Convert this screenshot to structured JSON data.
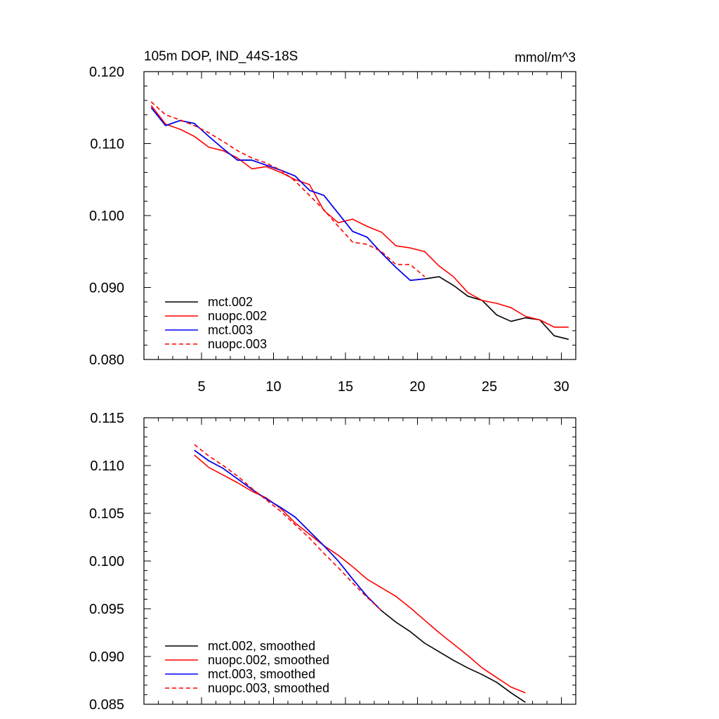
{
  "chart_data": [
    {
      "type": "line",
      "title": "105m DOP, IND_44S-18S",
      "units": "mmol/m^3",
      "xlabel": "",
      "ylabel": "",
      "xlim": [
        1,
        31
      ],
      "ylim": [
        0.08,
        0.12
      ],
      "x_tick_labels": [
        "5",
        "10",
        "15",
        "20",
        "25",
        "30"
      ],
      "y_tick_labels": [
        "0.080",
        "0.090",
        "0.100",
        "0.110",
        "0.120"
      ],
      "legend_position": "bottom-left",
      "grid": false,
      "series": [
        {
          "name": "mct.002",
          "color": "#000000",
          "dash": "solid",
          "x": [
            1.5,
            2.5,
            3.5,
            4.5,
            5.5,
            6.5,
            7.5,
            8.5,
            9.5,
            10.5,
            11.5,
            12.5,
            13.5,
            14.5,
            15.5,
            16.5,
            17.5,
            18.5,
            19.5,
            20.5,
            21.5,
            22.5,
            23.5,
            24.5,
            25.5,
            26.5,
            27.5,
            28.5,
            29.5,
            30.5
          ],
          "y": [
            0.115,
            0.1125,
            0.1132,
            0.1128,
            0.111,
            0.1093,
            0.1077,
            0.1077,
            0.107,
            0.1063,
            0.1055,
            0.1035,
            0.1028,
            0.1003,
            0.0978,
            0.097,
            0.0948,
            0.0928,
            0.091,
            0.0912,
            0.0915,
            0.0903,
            0.0888,
            0.0882,
            0.0862,
            0.0853,
            0.0858,
            0.0855,
            0.0833,
            0.0828
          ]
        },
        {
          "name": "nuopc.002",
          "color": "#ff0000",
          "dash": "solid",
          "x": [
            1.5,
            2.5,
            3.5,
            4.5,
            5.5,
            6.5,
            7.5,
            8.5,
            9.5,
            10.5,
            11.5,
            12.5,
            13.5,
            14.5,
            15.5,
            16.5,
            17.5,
            18.5,
            19.5,
            20.5,
            21.5,
            22.5,
            23.5,
            24.5,
            25.5,
            26.5,
            27.5,
            28.5,
            29.5,
            30.5
          ],
          "y": [
            0.1153,
            0.1127,
            0.112,
            0.111,
            0.1095,
            0.109,
            0.108,
            0.1065,
            0.1068,
            0.106,
            0.105,
            0.1043,
            0.1007,
            0.099,
            0.0995,
            0.0985,
            0.0977,
            0.0958,
            0.0955,
            0.095,
            0.093,
            0.0915,
            0.0893,
            0.0882,
            0.0878,
            0.0872,
            0.086,
            0.0855,
            0.0845,
            0.0845
          ]
        },
        {
          "name": "mct.003",
          "color": "#0000ff",
          "dash": "solid",
          "x": [
            1.5,
            2.5,
            3.5,
            4.5,
            5.5,
            6.5,
            7.5,
            8.5,
            9.5,
            10.5,
            11.5,
            12.5,
            13.5,
            14.5,
            15.5,
            16.5,
            17.5,
            18.5,
            19.5,
            20.5
          ],
          "y": [
            0.115,
            0.1125,
            0.1132,
            0.1128,
            0.111,
            0.1093,
            0.1077,
            0.1077,
            0.107,
            0.1063,
            0.1055,
            0.1035,
            0.1028,
            0.1003,
            0.0978,
            0.097,
            0.0948,
            0.0928,
            0.091,
            0.0912
          ]
        },
        {
          "name": "nuopc.003",
          "color": "#ff0000",
          "dash": "dashed",
          "x": [
            1.5,
            2.5,
            3.5,
            4.5,
            5.5,
            6.5,
            7.5,
            8.5,
            9.5,
            10.5,
            11.5,
            12.5,
            13.5,
            14.5,
            15.5,
            16.5,
            17.5,
            18.5,
            19.5,
            20.5
          ],
          "y": [
            0.1158,
            0.114,
            0.1133,
            0.1125,
            0.1115,
            0.1103,
            0.109,
            0.108,
            0.1073,
            0.1063,
            0.1048,
            0.1028,
            0.1008,
            0.0985,
            0.0963,
            0.096,
            0.095,
            0.0932,
            0.0932,
            0.0915
          ]
        }
      ]
    },
    {
      "type": "line",
      "title": "",
      "xlabel": "",
      "ylabel": "",
      "xlim": [
        1,
        31
      ],
      "ylim": [
        0.085,
        0.115
      ],
      "x_tick_labels": [],
      "y_tick_labels": [
        "0.085",
        "0.090",
        "0.095",
        "0.100",
        "0.105",
        "0.110",
        "0.115"
      ],
      "legend_position": "bottom-left",
      "grid": false,
      "series": [
        {
          "name": "mct.002, smoothed",
          "color": "#000000",
          "dash": "solid",
          "x": [
            4.5,
            5.5,
            6.5,
            7.5,
            8.5,
            9.5,
            10.5,
            11.5,
            12.5,
            13.5,
            14.5,
            15.5,
            16.5,
            17.5,
            18.5,
            19.5,
            20.5,
            21.5,
            22.5,
            23.5,
            24.5,
            25.5,
            26.5,
            27.5
          ],
          "y": [
            0.1116,
            0.1105,
            0.1097,
            0.1086,
            0.1075,
            0.1065,
            0.1056,
            0.1046,
            0.1031,
            0.1016,
            0.1,
            0.0981,
            0.0963,
            0.0948,
            0.0936,
            0.0926,
            0.0914,
            0.0905,
            0.0896,
            0.0888,
            0.0881,
            0.0873,
            0.0862,
            0.0852
          ]
        },
        {
          "name": "nuopc.002, smoothed",
          "color": "#ff0000",
          "dash": "solid",
          "x": [
            4.5,
            5.5,
            6.5,
            7.5,
            8.5,
            9.5,
            10.5,
            11.5,
            12.5,
            13.5,
            14.5,
            15.5,
            16.5,
            17.5,
            18.5,
            19.5,
            20.5,
            21.5,
            22.5,
            23.5,
            24.5,
            25.5,
            26.5,
            27.5
          ],
          "y": [
            0.1111,
            0.1098,
            0.109,
            0.1082,
            0.1073,
            0.1066,
            0.1055,
            0.104,
            0.1028,
            0.1016,
            0.1006,
            0.0994,
            0.0981,
            0.0972,
            0.0963,
            0.0951,
            0.0938,
            0.0925,
            0.0913,
            0.0901,
            0.0888,
            0.0878,
            0.0868,
            0.0862
          ]
        },
        {
          "name": "mct.003, smoothed",
          "color": "#0000ff",
          "dash": "solid",
          "x": [
            4.5,
            5.5,
            6.5,
            7.5,
            8.5,
            9.5,
            10.5,
            11.5,
            12.5,
            13.5,
            14.5,
            15.5,
            16.5,
            17.5
          ],
          "y": [
            0.1116,
            0.1105,
            0.1097,
            0.1086,
            0.1075,
            0.1065,
            0.1056,
            0.1046,
            0.1031,
            0.1016,
            0.1,
            0.0981,
            0.0963,
            0.0948
          ]
        },
        {
          "name": "nuopc.003, smoothed",
          "color": "#ff0000",
          "dash": "dashed",
          "x": [
            4.5,
            5.5,
            6.5,
            7.5,
            8.5,
            9.5,
            10.5,
            11.5,
            12.5,
            13.5,
            14.5,
            15.5,
            16.5,
            17.5
          ],
          "y": [
            0.1122,
            0.111,
            0.11,
            0.1089,
            0.1076,
            0.1064,
            0.1052,
            0.1038,
            0.1024,
            0.1008,
            0.0993,
            0.0977,
            0.0962,
            0.0948
          ]
        }
      ]
    }
  ]
}
